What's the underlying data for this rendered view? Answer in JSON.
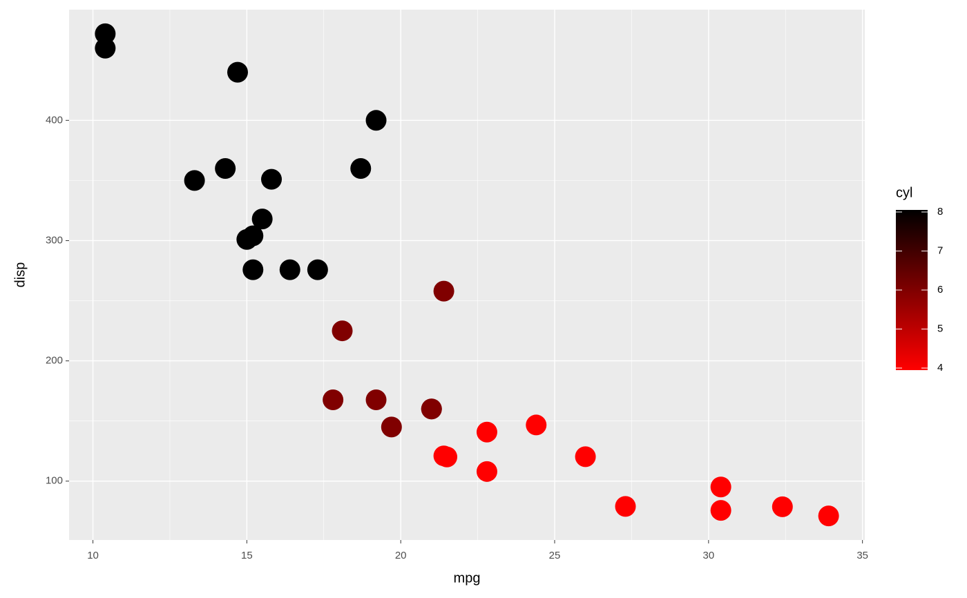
{
  "chart_data": {
    "type": "scatter",
    "x_label": "mpg",
    "y_label": "disp",
    "x": [
      21.0,
      21.0,
      22.8,
      21.4,
      18.7,
      18.1,
      14.3,
      24.4,
      22.8,
      19.2,
      17.8,
      16.4,
      17.3,
      15.2,
      10.4,
      10.4,
      14.7,
      32.4,
      30.4,
      33.9,
      21.5,
      15.5,
      15.2,
      13.3,
      19.2,
      27.3,
      26.0,
      30.4,
      15.8,
      19.7,
      15.0,
      21.4
    ],
    "y": [
      160,
      160,
      108,
      258,
      360,
      225,
      360,
      146.7,
      140.8,
      167.6,
      167.6,
      275.8,
      275.8,
      275.8,
      472,
      460,
      440,
      78.7,
      75.7,
      71.1,
      120.1,
      318,
      304,
      350,
      400,
      79,
      120.3,
      95.1,
      351,
      145,
      301,
      121
    ],
    "color_values": [
      6,
      6,
      4,
      6,
      8,
      6,
      8,
      4,
      4,
      6,
      6,
      8,
      8,
      8,
      8,
      8,
      8,
      4,
      4,
      4,
      4,
      8,
      8,
      8,
      8,
      4,
      4,
      4,
      8,
      6,
      8,
      4
    ],
    "xlim": [
      9.225,
      35.075
    ],
    "ylim": [
      51.055,
      492.045
    ],
    "xticks": [
      10,
      15,
      20,
      25,
      30,
      35
    ],
    "yticks": [
      100,
      200,
      300,
      400
    ],
    "grid": true,
    "legend": {
      "title": "cyl",
      "limits": [
        4,
        8
      ],
      "ticks": [
        4,
        5,
        6,
        7,
        8
      ],
      "low_color": "#ff0000",
      "high_color": "#000000"
    }
  }
}
